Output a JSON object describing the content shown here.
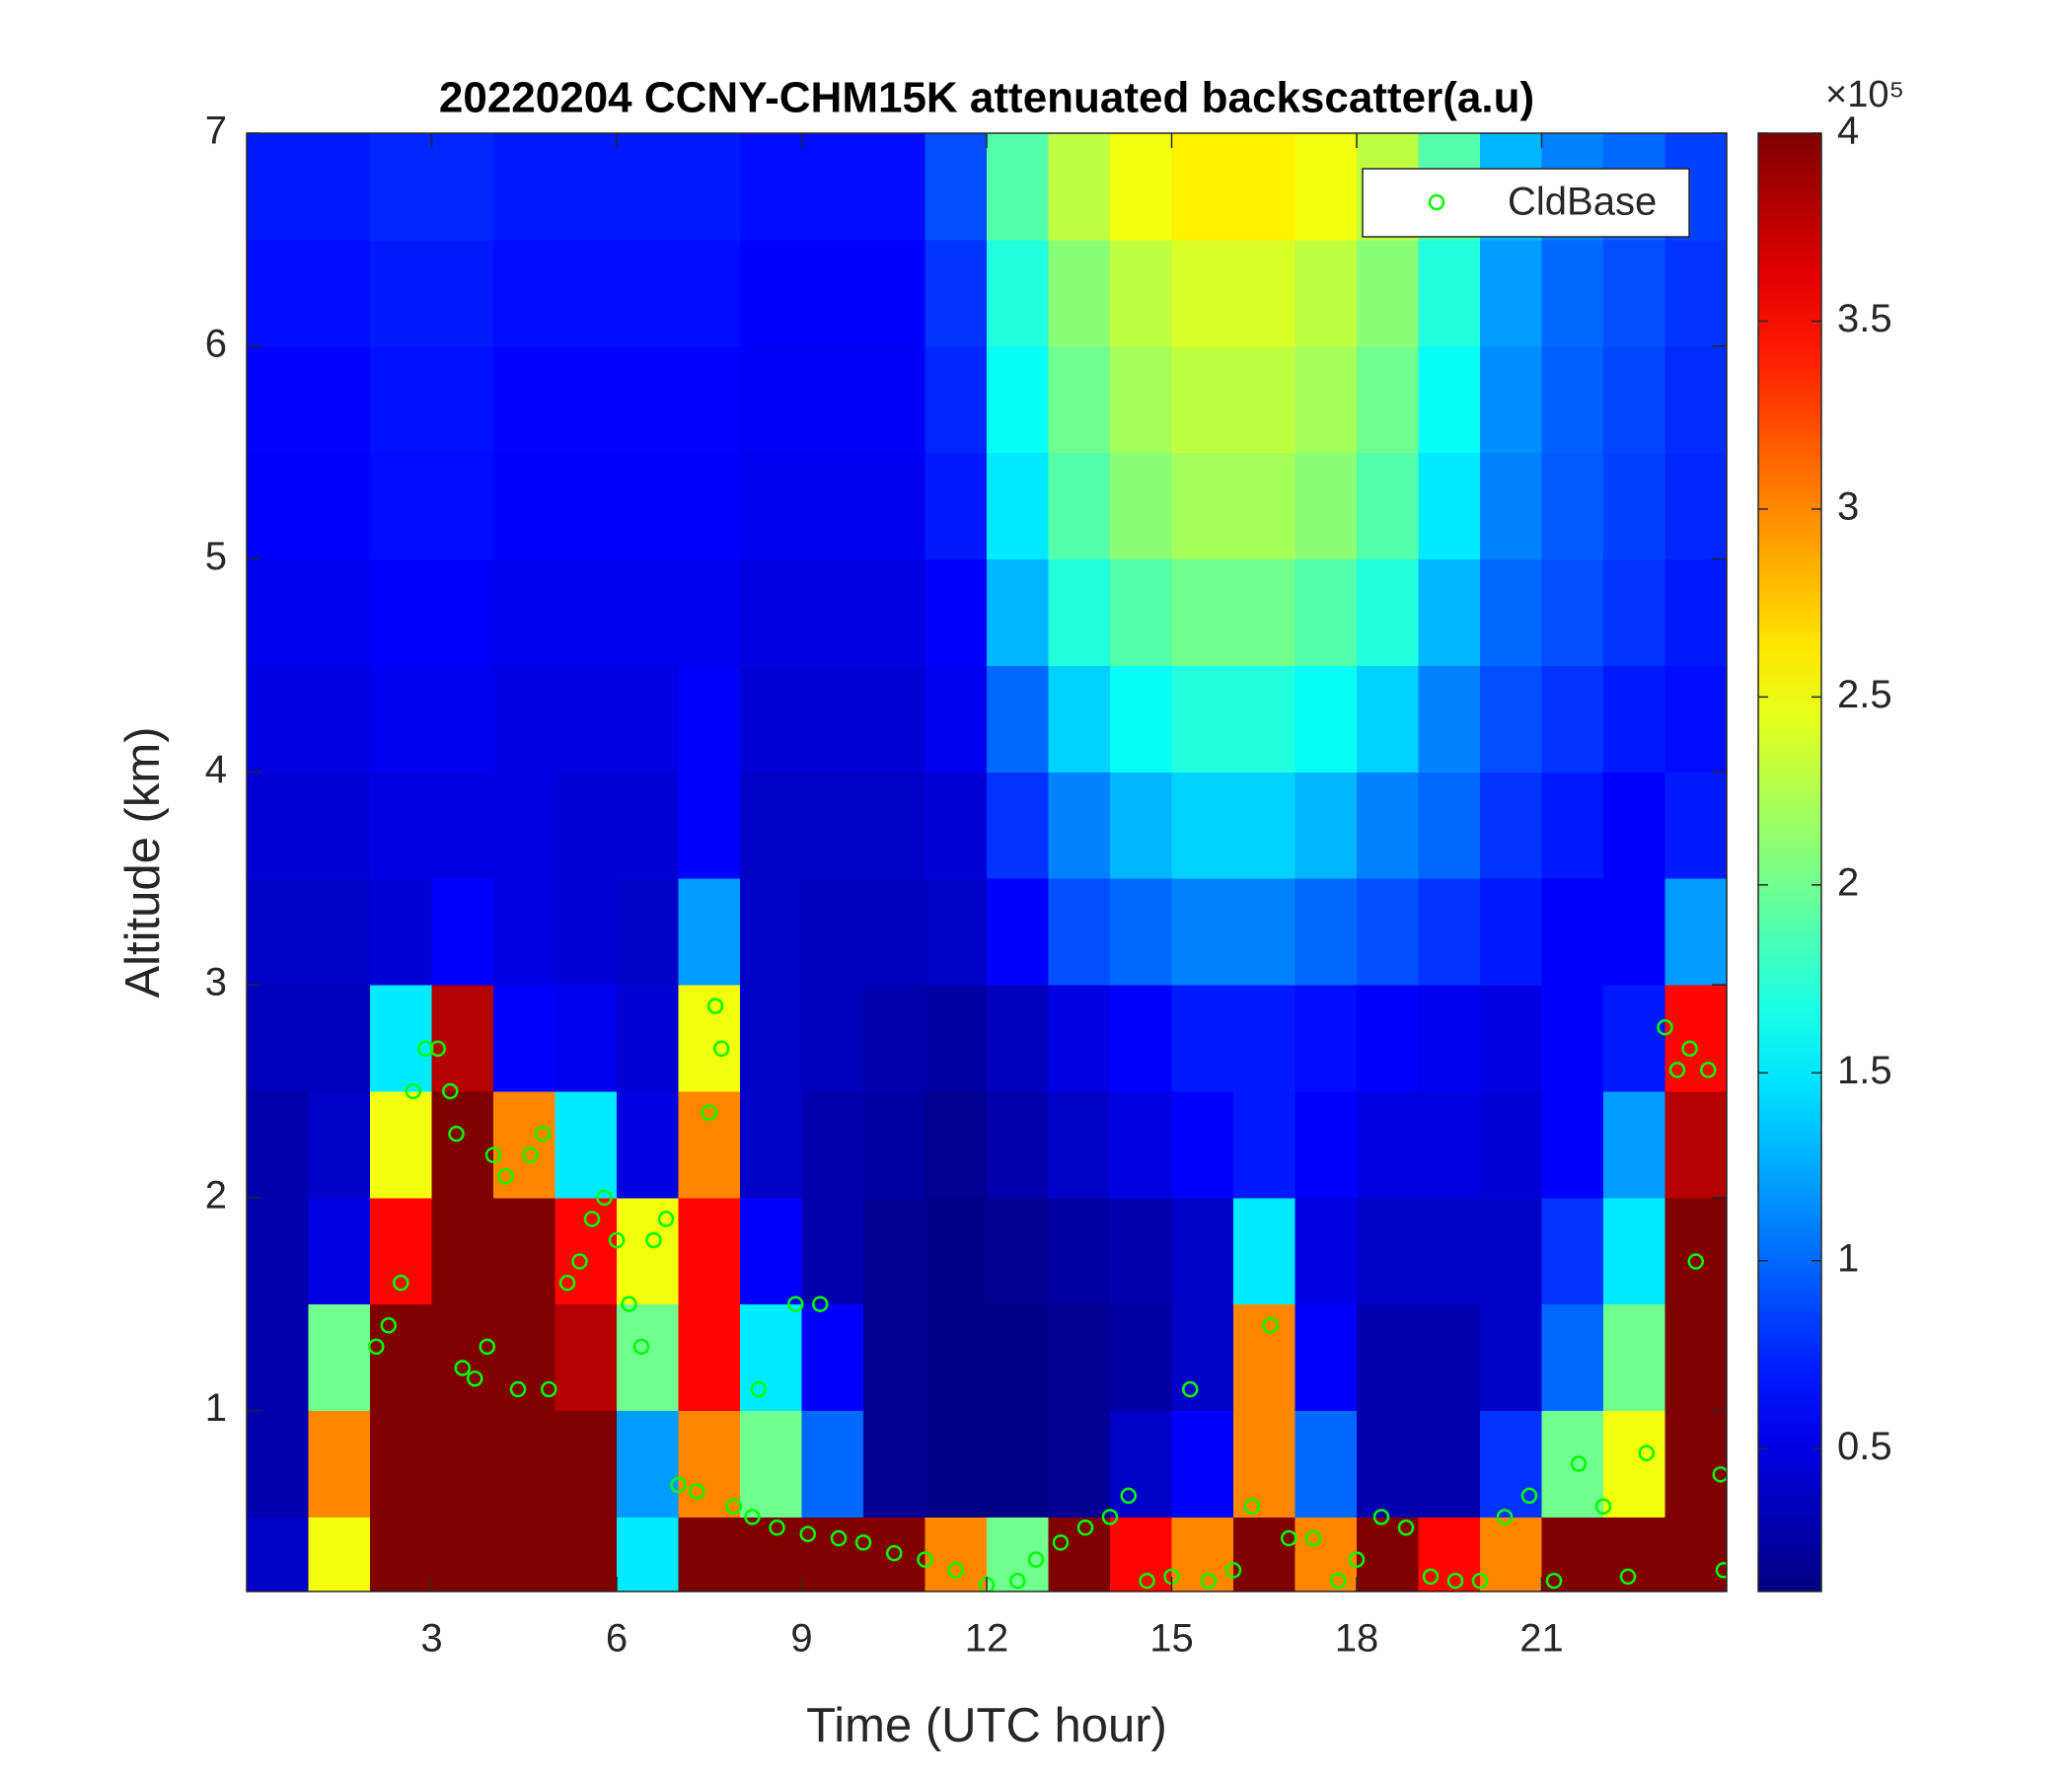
{
  "chart_data": {
    "type": "heatmap",
    "title": "20220204 CCNY-CHM15K attenuated backscatter(a.u)",
    "x_label": "Time (UTC hour)",
    "y_label": "Altitude (km)",
    "xlim": [
      0,
      24
    ],
    "xticks": [
      3,
      6,
      9,
      12,
      15,
      18,
      21
    ],
    "ylim": [
      0.15,
      7
    ],
    "yticks": [
      1,
      2,
      3,
      4,
      5,
      6,
      7
    ],
    "x": [
      0.5,
      1.5,
      2.5,
      3.5,
      4.5,
      5.5,
      6.5,
      7.5,
      8.5,
      9.5,
      10.5,
      11.5,
      12.5,
      13.5,
      14.5,
      15.5,
      16.5,
      17.5,
      18.5,
      19.5,
      20.5,
      21.5,
      22.5,
      23.5
    ],
    "y": [
      0.25,
      0.75,
      1.25,
      1.75,
      2.25,
      2.75,
      3.25,
      3.75,
      4.25,
      4.75,
      5.25,
      5.75,
      6.25,
      6.75
    ],
    "z": [
      [
        40000,
        250000,
        400000,
        400000,
        400000,
        400000,
        150000,
        400000,
        400000,
        400000,
        400000,
        300000,
        200000,
        400000,
        350000,
        300000,
        400000,
        300000,
        400000,
        350000,
        300000,
        400000,
        400000,
        400000
      ],
      [
        30000,
        300000,
        400000,
        400000,
        400000,
        400000,
        120000,
        300000,
        200000,
        100000,
        20000,
        15000,
        15000,
        20000,
        40000,
        60000,
        300000,
        100000,
        30000,
        30000,
        80000,
        200000,
        250000,
        400000
      ],
      [
        30000,
        200000,
        400000,
        400000,
        400000,
        380000,
        200000,
        350000,
        150000,
        60000,
        20000,
        15000,
        15000,
        20000,
        25000,
        40000,
        300000,
        60000,
        30000,
        30000,
        40000,
        100000,
        200000,
        400000
      ],
      [
        30000,
        50000,
        350000,
        400000,
        400000,
        350000,
        250000,
        350000,
        60000,
        30000,
        20000,
        15000,
        20000,
        25000,
        30000,
        40000,
        150000,
        50000,
        40000,
        40000,
        40000,
        80000,
        150000,
        400000
      ],
      [
        30000,
        40000,
        250000,
        400000,
        300000,
        150000,
        50000,
        300000,
        40000,
        30000,
        25000,
        20000,
        30000,
        40000,
        50000,
        60000,
        70000,
        60000,
        50000,
        50000,
        45000,
        60000,
        120000,
        380000
      ],
      [
        35000,
        35000,
        150000,
        380000,
        60000,
        55000,
        45000,
        250000,
        40000,
        35000,
        30000,
        25000,
        35000,
        50000,
        60000,
        70000,
        70000,
        65000,
        60000,
        55000,
        50000,
        60000,
        70000,
        350000
      ],
      [
        40000,
        40000,
        45000,
        60000,
        50000,
        45000,
        40000,
        120000,
        40000,
        35000,
        35000,
        40000,
        60000,
        90000,
        100000,
        110000,
        110000,
        100000,
        90000,
        80000,
        70000,
        60000,
        60000,
        120000
      ],
      [
        45000,
        45000,
        50000,
        50000,
        50000,
        45000,
        45000,
        60000,
        40000,
        40000,
        40000,
        45000,
        80000,
        110000,
        130000,
        140000,
        140000,
        130000,
        110000,
        100000,
        80000,
        70000,
        60000,
        70000
      ],
      [
        50000,
        50000,
        55000,
        55000,
        50000,
        50000,
        50000,
        60000,
        45000,
        45000,
        45000,
        55000,
        100000,
        140000,
        160000,
        170000,
        170000,
        160000,
        140000,
        110000,
        90000,
        80000,
        70000,
        65000
      ],
      [
        55000,
        55000,
        60000,
        60000,
        55000,
        55000,
        55000,
        55000,
        50000,
        50000,
        50000,
        60000,
        130000,
        170000,
        190000,
        200000,
        200000,
        190000,
        170000,
        130000,
        100000,
        90000,
        80000,
        70000
      ],
      [
        60000,
        60000,
        65000,
        65000,
        60000,
        60000,
        60000,
        60000,
        55000,
        55000,
        55000,
        70000,
        150000,
        190000,
        210000,
        220000,
        220000,
        210000,
        190000,
        150000,
        110000,
        95000,
        85000,
        75000
      ],
      [
        62000,
        62000,
        67000,
        67000,
        62000,
        62000,
        62000,
        62000,
        57000,
        57000,
        57000,
        75000,
        160000,
        200000,
        220000,
        230000,
        230000,
        220000,
        200000,
        160000,
        115000,
        97000,
        87000,
        77000
      ],
      [
        65000,
        65000,
        70000,
        70000,
        65000,
        65000,
        65000,
        65000,
        60000,
        60000,
        60000,
        80000,
        170000,
        210000,
        230000,
        240000,
        240000,
        230000,
        210000,
        170000,
        120000,
        100000,
        90000,
        80000
      ],
      [
        70000,
        70000,
        75000,
        75000,
        70000,
        70000,
        70000,
        70000,
        65000,
        65000,
        65000,
        90000,
        190000,
        230000,
        250000,
        260000,
        260000,
        250000,
        230000,
        190000,
        130000,
        110000,
        100000,
        85000
      ]
    ],
    "clim": [
      12000,
      400000
    ],
    "colorbar_ticks": [
      {
        "value": 50000,
        "label": "0.5"
      },
      {
        "value": 100000,
        "label": "1"
      },
      {
        "value": 150000,
        "label": "1.5"
      },
      {
        "value": 200000,
        "label": "2"
      },
      {
        "value": 250000,
        "label": "2.5"
      },
      {
        "value": 300000,
        "label": "3"
      },
      {
        "value": 350000,
        "label": "3.5"
      },
      {
        "value": 400000,
        "label": "4"
      }
    ],
    "colorbar_exponent": "×10⁵",
    "colormap": "jet",
    "legend": "top-right",
    "series": [
      {
        "name": "CldBase",
        "color": "#00ff00",
        "x": [
          2.1,
          2.3,
          2.5,
          2.7,
          2.9,
          3.1,
          3.3,
          3.4,
          3.5,
          3.7,
          3.9,
          4.0,
          4.2,
          4.4,
          4.6,
          4.8,
          4.9,
          5.2,
          5.4,
          5.6,
          5.8,
          6.0,
          6.2,
          6.4,
          6.6,
          6.8,
          7.0,
          7.3,
          7.5,
          7.6,
          7.7,
          7.9,
          8.2,
          8.3,
          8.6,
          8.9,
          9.1,
          9.3,
          9.6,
          10.0,
          10.5,
          11.0,
          11.5,
          12.0,
          12.5,
          12.8,
          13.2,
          13.6,
          14.0,
          14.3,
          14.6,
          15.0,
          15.3,
          15.6,
          16.0,
          16.3,
          16.6,
          16.9,
          17.3,
          17.7,
          18.0,
          18.4,
          18.8,
          19.2,
          19.6,
          20.0,
          20.4,
          20.8,
          21.2,
          21.6,
          22.0,
          22.4,
          22.7,
          23.0,
          23.2,
          23.4,
          23.5,
          23.7,
          23.9,
          23.95
        ],
        "y": [
          1.3,
          1.4,
          1.6,
          2.5,
          2.7,
          2.7,
          2.5,
          2.3,
          1.2,
          1.15,
          1.3,
          2.2,
          2.1,
          1.1,
          2.2,
          2.3,
          1.1,
          1.6,
          1.7,
          1.9,
          2.0,
          1.8,
          1.5,
          1.3,
          1.8,
          1.9,
          0.65,
          0.62,
          2.4,
          2.9,
          2.7,
          0.55,
          0.5,
          1.1,
          0.45,
          1.5,
          0.42,
          1.5,
          0.4,
          0.38,
          0.33,
          0.3,
          0.25,
          0.18,
          0.2,
          0.3,
          0.38,
          0.45,
          0.5,
          0.6,
          0.2,
          0.22,
          1.1,
          0.2,
          0.25,
          0.55,
          1.4,
          0.4,
          0.4,
          0.2,
          0.3,
          0.5,
          0.45,
          0.22,
          0.2,
          0.2,
          0.5,
          0.6,
          0.2,
          0.75,
          0.55,
          0.22,
          0.8,
          2.8,
          2.6,
          2.7,
          1.7,
          2.6,
          0.7,
          0.25
        ]
      }
    ]
  }
}
